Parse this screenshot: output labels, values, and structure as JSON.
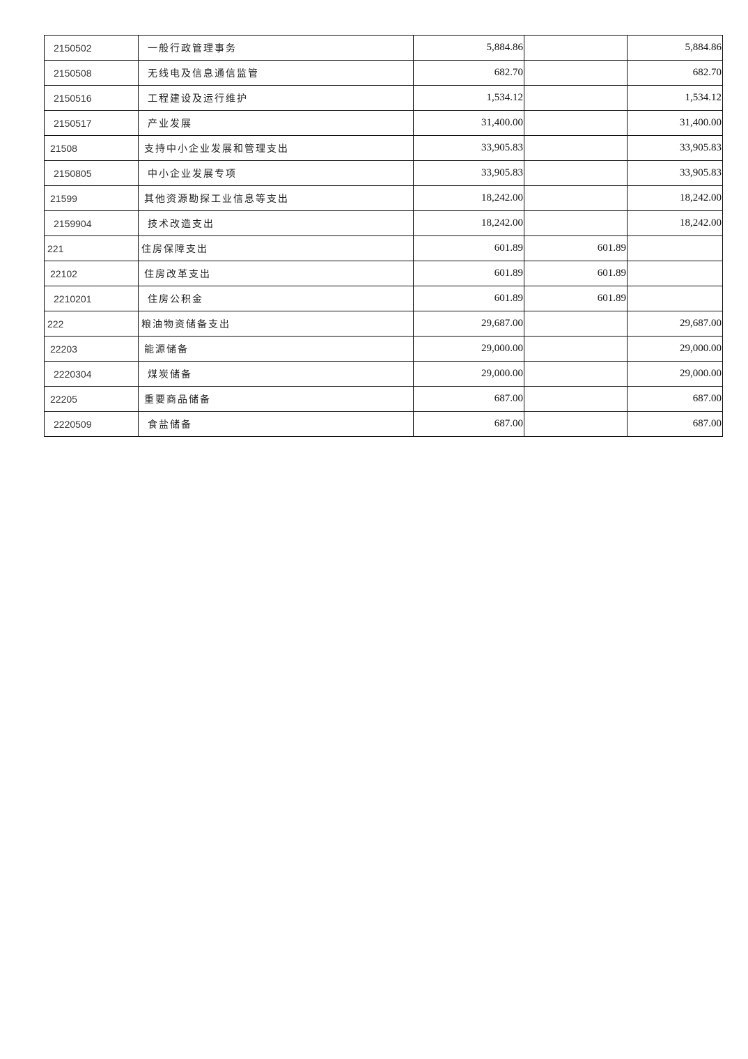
{
  "rows": [
    {
      "code": "2150502",
      "name": "一般行政管理事务",
      "total": "5,884.86",
      "basic": "",
      "project": "5,884.86",
      "level": 3
    },
    {
      "code": "2150508",
      "name": "无线电及信息通信监管",
      "total": "682.70",
      "basic": "",
      "project": "682.70",
      "level": 3
    },
    {
      "code": "2150516",
      "name": "工程建设及运行维护",
      "total": "1,534.12",
      "basic": "",
      "project": "1,534.12",
      "level": 3
    },
    {
      "code": "2150517",
      "name": "产业发展",
      "total": "31,400.00",
      "basic": "",
      "project": "31,400.00",
      "level": 3
    },
    {
      "code": "21508",
      "name": "支持中小企业发展和管理支出",
      "total": "33,905.83",
      "basic": "",
      "project": "33,905.83",
      "level": 2
    },
    {
      "code": "2150805",
      "name": "中小企业发展专项",
      "total": "33,905.83",
      "basic": "",
      "project": "33,905.83",
      "level": 3
    },
    {
      "code": "21599",
      "name": "其他资源勘探工业信息等支出",
      "total": "18,242.00",
      "basic": "",
      "project": "18,242.00",
      "level": 2
    },
    {
      "code": "2159904",
      "name": "技术改造支出",
      "total": "18,242.00",
      "basic": "",
      "project": "18,242.00",
      "level": 3
    },
    {
      "code": "221",
      "name": "住房保障支出",
      "total": "601.89",
      "basic": "601.89",
      "project": "",
      "level": 1
    },
    {
      "code": "22102",
      "name": "住房改革支出",
      "total": "601.89",
      "basic": "601.89",
      "project": "",
      "level": 2
    },
    {
      "code": "2210201",
      "name": "住房公积金",
      "total": "601.89",
      "basic": "601.89",
      "project": "",
      "level": 3
    },
    {
      "code": "222",
      "name": "粮油物资储备支出",
      "total": "29,687.00",
      "basic": "",
      "project": "29,687.00",
      "level": 1
    },
    {
      "code": "22203",
      "name": "能源储备",
      "total": "29,000.00",
      "basic": "",
      "project": "29,000.00",
      "level": 2
    },
    {
      "code": "2220304",
      "name": "煤炭储备",
      "total": "29,000.00",
      "basic": "",
      "project": "29,000.00",
      "level": 3
    },
    {
      "code": "22205",
      "name": "重要商品储备",
      "total": "687.00",
      "basic": "",
      "project": "687.00",
      "level": 2
    },
    {
      "code": "2220509",
      "name": "食盐储备",
      "total": "687.00",
      "basic": "",
      "project": "687.00",
      "level": 3
    }
  ]
}
